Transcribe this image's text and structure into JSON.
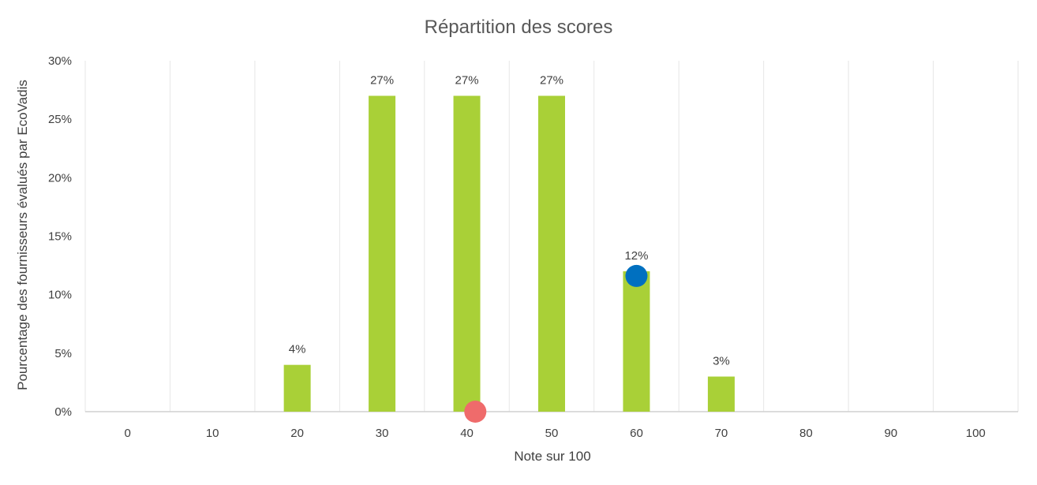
{
  "chart_data": {
    "type": "bar",
    "title": "Répartition des scores",
    "xlabel": "Note sur 100",
    "ylabel": "Pourcentage des fournisseurs évalués par EcoVadis",
    "categories": [
      "0",
      "10",
      "20",
      "30",
      "40",
      "50",
      "60",
      "70",
      "80",
      "90",
      "100"
    ],
    "values": [
      0,
      0,
      4,
      27,
      27,
      27,
      12,
      3,
      0,
      0,
      0
    ],
    "data_labels": [
      "",
      "",
      "4%",
      "27%",
      "27%",
      "27%",
      "12%",
      "3%",
      "",
      "",
      ""
    ],
    "ylim": [
      0,
      30
    ],
    "yticks": [
      0,
      5,
      10,
      15,
      20,
      25,
      30
    ],
    "ytick_labels": [
      "0%",
      "5%",
      "10%",
      "15%",
      "20%",
      "25%",
      "30%"
    ],
    "grid": "vertical",
    "bar_color": "#a9d037",
    "markers": [
      {
        "x": 41,
        "y": 0,
        "color": "#ef6b6b"
      },
      {
        "x": 60,
        "y": 11.6,
        "color": "#0070c0"
      }
    ]
  }
}
